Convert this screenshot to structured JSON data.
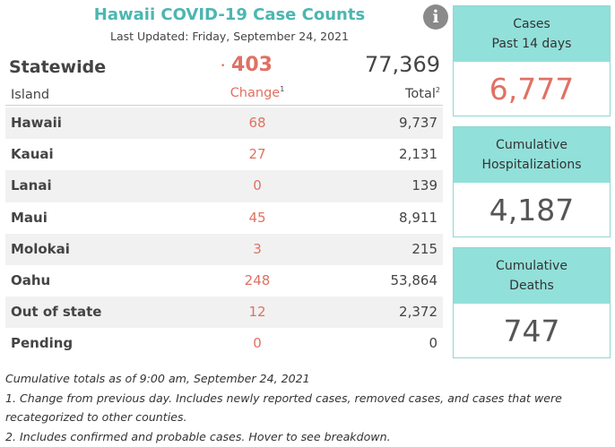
{
  "header": {
    "title": "Hawaii COVID-19 Case Counts",
    "updated": "Last Updated: Friday, September 24, 2021",
    "info_icon": "info-icon"
  },
  "statewide": {
    "label": "Statewide",
    "dot": "•",
    "change": "403",
    "total": "77,369"
  },
  "columns": {
    "island": "Island",
    "change": "Change",
    "change_sup": "1",
    "total": "Total",
    "total_sup": "2"
  },
  "rows": [
    {
      "island": "Hawaii",
      "change": "68",
      "total": "9,737"
    },
    {
      "island": "Kauai",
      "change": "27",
      "total": "2,131"
    },
    {
      "island": "Lanai",
      "change": "0",
      "total": "139"
    },
    {
      "island": "Maui",
      "change": "45",
      "total": "8,911"
    },
    {
      "island": "Molokai",
      "change": "3",
      "total": "215"
    },
    {
      "island": "Oahu",
      "change": "248",
      "total": "53,864"
    },
    {
      "island": "Out of state",
      "change": "12",
      "total": "2,372"
    },
    {
      "island": "Pending",
      "change": "0",
      "total": "0"
    }
  ],
  "notes": [
    "Cumulative totals as of 9:00 am, September 24, 2021",
    "1. Change from previous day. Includes newly reported cases, removed cases, and cases that were recategorized to other counties.",
    "2. Includes confirmed and probable cases. Hover to see breakdown."
  ],
  "cards": {
    "cases": {
      "line1": "Cases",
      "line2": "Past 14 days",
      "value": "6,777"
    },
    "hospitalizations": {
      "line1": "Cumulative",
      "line2": "Hospitalizations",
      "value": "4,187"
    },
    "deaths": {
      "line1": "Cumulative",
      "line2": "Deaths",
      "value": "747"
    }
  },
  "colors": {
    "title": "#4bb7b0",
    "change": "#e07163",
    "card_header": "#92e0da",
    "card_border": "#8fd6d1",
    "row_shade": "#f1f1f1"
  }
}
